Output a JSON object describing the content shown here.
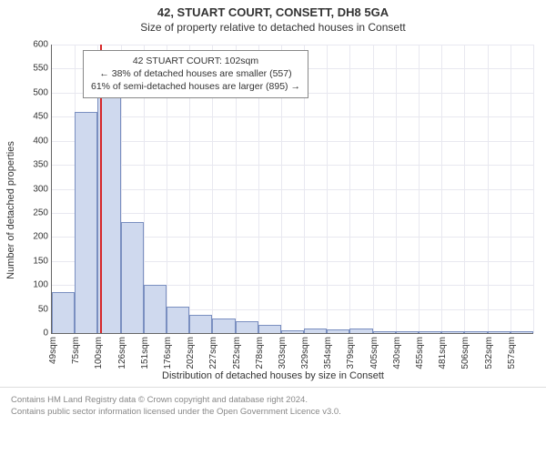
{
  "title_main": "42, STUART COURT, CONSETT, DH8 5GA",
  "title_sub": "Size of property relative to detached houses in Consett",
  "y_axis_label": "Number of detached properties",
  "x_axis_label": "Distribution of detached houses by size in Consett",
  "chart": {
    "type": "histogram",
    "y_min": 0,
    "y_max": 600,
    "y_tick_step": 50,
    "x_ticks": [
      "49sqm",
      "75sqm",
      "100sqm",
      "126sqm",
      "151sqm",
      "176sqm",
      "202sqm",
      "227sqm",
      "252sqm",
      "278sqm",
      "303sqm",
      "329sqm",
      "354sqm",
      "379sqm",
      "405sqm",
      "430sqm",
      "455sqm",
      "481sqm",
      "506sqm",
      "532sqm",
      "557sqm"
    ],
    "bars": [
      85,
      460,
      500,
      230,
      100,
      55,
      38,
      30,
      24,
      18,
      5,
      10,
      8,
      10,
      3,
      4,
      4,
      3,
      3,
      3,
      3
    ],
    "bar_fill": "#cfd9ee",
    "bar_stroke": "#7a8fc0",
    "grid_color": "#e8e8f0",
    "axis_color": "#666666",
    "marker": {
      "bin_index": 2,
      "position_in_bin": 0.12,
      "color": "#d62728"
    },
    "background_color": "#ffffff"
  },
  "info_box": {
    "line1": "42 STUART COURT: 102sqm",
    "line2": "← 38% of detached houses are smaller (557)",
    "line3": "61% of semi-detached houses are larger (895) →"
  },
  "footer": {
    "line1": "Contains HM Land Registry data © Crown copyright and database right 2024.",
    "line2": "Contains public sector information licensed under the Open Government Licence v3.0."
  }
}
